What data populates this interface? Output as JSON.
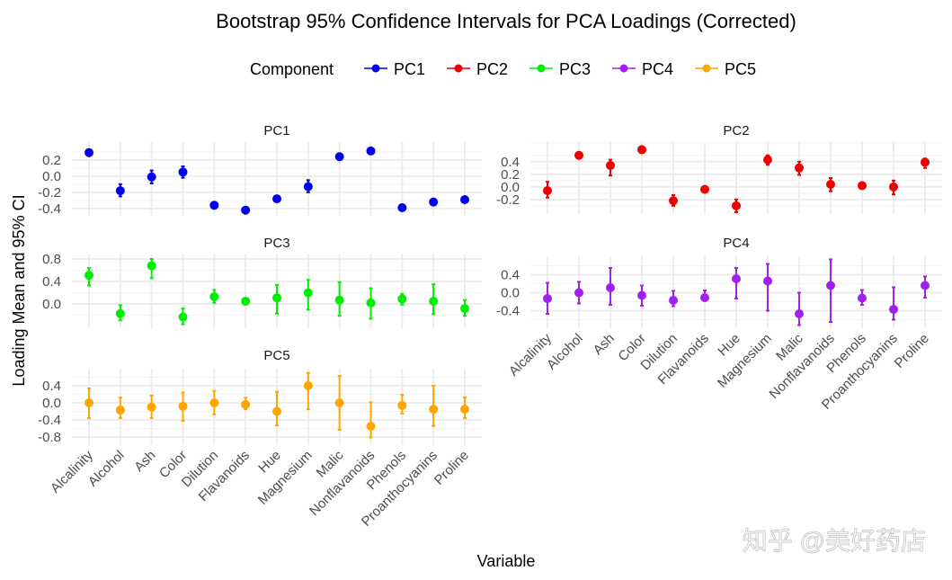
{
  "chart_data": {
    "type": "scatter",
    "title": "Bootstrap 95% Confidence Intervals for PCA Loadings (Corrected)",
    "xlabel": "Variable",
    "ylabel": "Loading Mean and 95% CI",
    "legend": {
      "title": "Component",
      "placement": "top",
      "entries": [
        "PC1",
        "PC2",
        "PC3",
        "PC4",
        "PC5"
      ]
    },
    "grid": true,
    "categories": [
      "Alcalinity",
      "Alcohol",
      "Ash",
      "Color",
      "Dilution",
      "Flavanoids",
      "Hue",
      "Magnesium",
      "Malic",
      "Nonflavanoids",
      "Phenols",
      "Proanthocyanins",
      "Proline"
    ],
    "series": [
      {
        "name": "PC1",
        "color": "#0000ee",
        "ylim": [
          -0.49,
          0.42
        ],
        "ticks": [
          -0.4,
          -0.2,
          0.0,
          0.2
        ],
        "mean": [
          0.29,
          -0.18,
          -0.01,
          0.05,
          -0.36,
          -0.42,
          -0.28,
          -0.13,
          0.24,
          0.31,
          -0.39,
          -0.32,
          -0.29
        ],
        "lower": [
          0.27,
          -0.25,
          -0.09,
          -0.02,
          -0.38,
          -0.44,
          -0.3,
          -0.2,
          0.22,
          0.29,
          -0.41,
          -0.34,
          -0.31
        ],
        "upper": [
          0.31,
          -0.1,
          0.07,
          0.12,
          -0.34,
          -0.4,
          -0.26,
          -0.05,
          0.26,
          0.33,
          -0.37,
          -0.3,
          -0.27
        ]
      },
      {
        "name": "PC2",
        "color": "#ee0000",
        "ylim": [
          -0.43,
          0.71
        ],
        "ticks": [
          -0.2,
          0.0,
          0.2,
          0.4
        ],
        "mean": [
          -0.06,
          0.5,
          0.34,
          0.59,
          -0.22,
          -0.04,
          -0.3,
          0.43,
          0.3,
          0.04,
          0.02,
          0.0,
          0.39
        ],
        "lower": [
          -0.17,
          0.47,
          0.18,
          0.56,
          -0.3,
          -0.08,
          -0.4,
          0.35,
          0.19,
          -0.07,
          -0.03,
          -0.12,
          0.3
        ],
        "upper": [
          0.08,
          0.53,
          0.43,
          0.62,
          -0.13,
          0.0,
          -0.2,
          0.5,
          0.4,
          0.14,
          0.07,
          0.1,
          0.45
        ]
      },
      {
        "name": "PC3",
        "color": "#00ee00",
        "ylim": [
          -0.43,
          0.88
        ],
        "ticks": [
          0.0,
          0.4,
          0.8
        ],
        "mean": [
          0.51,
          -0.17,
          0.68,
          -0.23,
          0.13,
          0.05,
          0.11,
          0.2,
          0.07,
          0.02,
          0.09,
          0.05,
          -0.08
        ],
        "lower": [
          0.33,
          -0.29,
          0.46,
          -0.36,
          0.02,
          0.0,
          -0.17,
          -0.1,
          -0.21,
          -0.26,
          -0.01,
          -0.18,
          -0.21
        ],
        "upper": [
          0.64,
          -0.02,
          0.8,
          -0.08,
          0.25,
          0.09,
          0.34,
          0.43,
          0.39,
          0.28,
          0.18,
          0.35,
          0.07
        ]
      },
      {
        "name": "PC4",
        "color": "#a020f0",
        "ylim": [
          -0.79,
          0.81
        ],
        "ticks": [
          -0.4,
          0.0,
          0.4
        ],
        "mean": [
          -0.13,
          0.0,
          0.11,
          -0.06,
          -0.17,
          -0.11,
          0.31,
          0.26,
          -0.47,
          0.16,
          -0.12,
          -0.37,
          0.16
        ],
        "lower": [
          -0.47,
          -0.24,
          -0.27,
          -0.29,
          -0.3,
          -0.17,
          -0.13,
          -0.4,
          -0.72,
          -0.65,
          -0.27,
          -0.6,
          -0.11
        ],
        "upper": [
          0.22,
          0.24,
          0.55,
          0.16,
          0.04,
          0.05,
          0.55,
          0.64,
          0.0,
          0.74,
          0.06,
          0.12,
          0.36
        ]
      },
      {
        "name": "PC5",
        "color": "#ffa500",
        "ylim": [
          -0.99,
          0.8
        ],
        "ticks": [
          -0.8,
          -0.4,
          0.0,
          0.4
        ],
        "mean": [
          0.0,
          -0.17,
          -0.1,
          -0.08,
          0.0,
          -0.04,
          -0.2,
          0.4,
          0.0,
          -0.55,
          -0.06,
          -0.15,
          -0.15
        ],
        "lower": [
          -0.36,
          -0.36,
          -0.36,
          -0.42,
          -0.27,
          -0.15,
          -0.53,
          -0.15,
          -0.63,
          -0.81,
          -0.25,
          -0.54,
          -0.36
        ],
        "upper": [
          0.34,
          0.12,
          0.17,
          0.24,
          0.28,
          0.12,
          0.26,
          0.7,
          0.63,
          0.01,
          0.19,
          0.4,
          0.13
        ]
      }
    ]
  },
  "watermark": "知乎 @美好药店"
}
